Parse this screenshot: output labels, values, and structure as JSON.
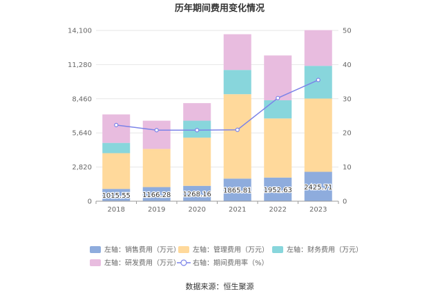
{
  "chart_data": {
    "type": "bar",
    "stacked": true,
    "title": "历年期间费用变化情况",
    "categories": [
      "2018",
      "2019",
      "2020",
      "2021",
      "2022",
      "2023"
    ],
    "y_left": {
      "ticks": [
        "0",
        "2,820",
        "5,640",
        "8,460",
        "11,280",
        "14,100"
      ],
      "ylim": [
        0,
        14100
      ]
    },
    "y_right": {
      "ticks": [
        "0",
        "10",
        "20",
        "30",
        "40",
        "50"
      ],
      "ylim": [
        0,
        50
      ]
    },
    "series": [
      {
        "name": "左轴：销售费用（万元）",
        "kind": "bar",
        "axis": "left",
        "color": "#8eacdd",
        "values": [
          1015.55,
          1166.28,
          1268.16,
          1865.81,
          1952.63,
          2425.71
        ],
        "labels": [
          "1015.55",
          "1166.28",
          "1268.16",
          "1865.81",
          "1952.63",
          "2425.71"
        ]
      },
      {
        "name": "左轴：管理费用（万元）",
        "kind": "bar",
        "axis": "left",
        "color": "#ffd99b",
        "values": [
          2950,
          3150,
          3980,
          6970,
          4880,
          6050
        ]
      },
      {
        "name": "左轴：财务费用（万元）",
        "kind": "bar",
        "axis": "left",
        "color": "#88d6dc",
        "values": [
          850,
          0,
          1400,
          2000,
          1500,
          2700
        ]
      },
      {
        "name": "左轴：研发费用（万元）",
        "kind": "bar",
        "axis": "left",
        "color": "#e8bcdf",
        "values": [
          2350,
          2330,
          1450,
          2950,
          3700,
          2950
        ]
      },
      {
        "name": "右轴：期间费用率（%）",
        "kind": "line",
        "axis": "right",
        "color": "#7b83e8",
        "values": [
          22.3,
          20.8,
          20.8,
          20.9,
          30.2,
          35.5
        ]
      }
    ],
    "legend_position": "bottom",
    "grid": true
  },
  "footer": {
    "source": "数据来源：恒生聚源"
  }
}
